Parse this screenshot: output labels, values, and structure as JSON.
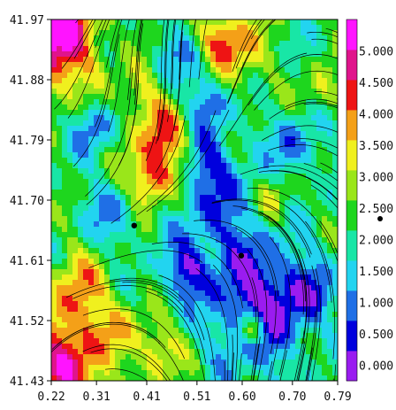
{
  "chart_data": {
    "type": "heatmap",
    "title": "",
    "xlabel": "",
    "ylabel": "",
    "x_ticks": [
      "0.22",
      "0.31",
      "0.41",
      "0.51",
      "0.60",
      "0.70",
      "0.79"
    ],
    "y_ticks": [
      "41.97",
      "41.88",
      "41.79",
      "41.70",
      "41.61",
      "41.52",
      "41.43"
    ],
    "xlim": [
      0.22,
      0.79
    ],
    "ylim": [
      41.43,
      41.97
    ],
    "colorbar": {
      "labels": [
        "0.000",
        "0.500",
        "1.000",
        "1.500",
        "2.000",
        "2.500",
        "3.000",
        "3.500",
        "4.000",
        "4.500",
        "5.000"
      ],
      "range": [
        -0.25,
        5.5
      ],
      "colors": [
        "#9a1cf0",
        "#0000dd",
        "#1f6fe6",
        "#22d4f0",
        "#18e6a6",
        "#1ed61e",
        "#9ae61a",
        "#f0f01e",
        "#f4a018",
        "#ee1414",
        "#e0148c",
        "#ff14ff"
      ]
    },
    "markers": [
      {
        "x": 0.385,
        "y": 41.662
      },
      {
        "x": 0.598,
        "y": 41.617
      }
    ],
    "overlay": "streamlines"
  },
  "colors": {
    "streamline": "#000000",
    "frame": "#000000"
  }
}
